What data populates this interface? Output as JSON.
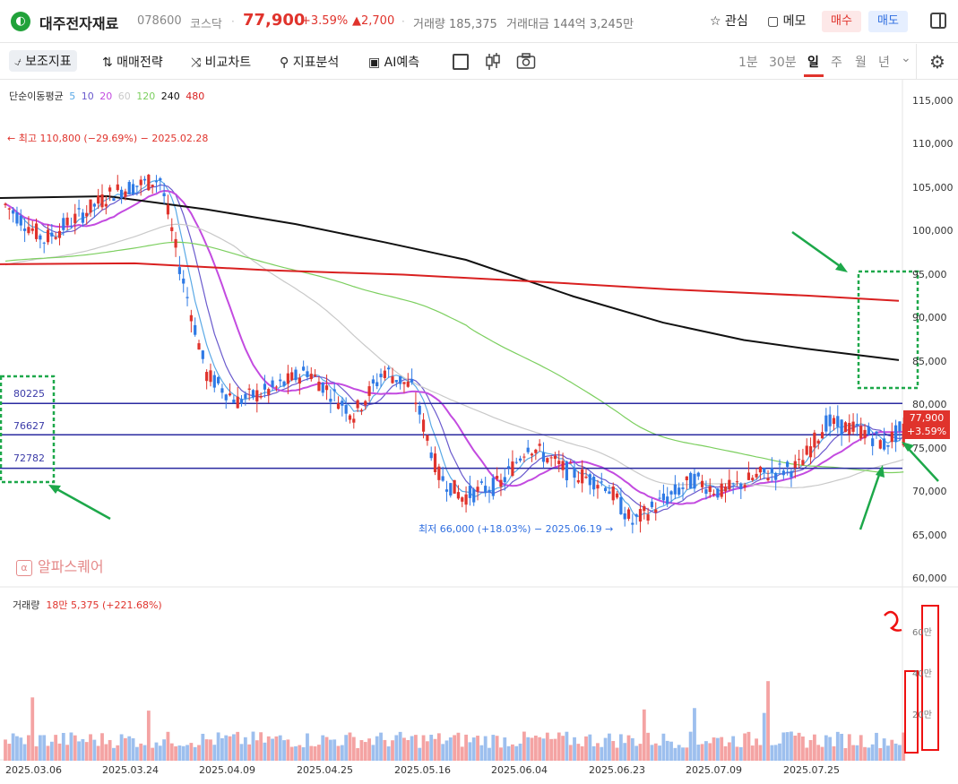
{
  "header": {
    "logo_glyph": "◐",
    "name": "대주전자재료",
    "code": "078600",
    "market": "코스닥",
    "price": "77,900",
    "change_pct": "+3.59%",
    "change_abs": "▲2,700",
    "volume": "거래량 185,375",
    "amount": "거래대금 144억 3,245만",
    "favorite_label": "☆ 관심",
    "memo_label": "▢ 메모",
    "buy_label": "매수",
    "sell_label": "매도"
  },
  "toolbar": {
    "indicator_label": "⍻ 보조지표",
    "strategy_label": "⇅ 매매전략",
    "compare_label": "⤨ 비교차트",
    "analysis_label": "⚲ 지표분석",
    "ai_label": "▣ AI예측",
    "candle_icon": "candle-icon",
    "camera_icon": "camera-icon",
    "periods": [
      "1분",
      "30분",
      "일",
      "주",
      "월",
      "년"
    ],
    "selected_period": "일",
    "period_dropdown": "⌄",
    "settings_icon": "⚙"
  },
  "legend": {
    "label": "단순이동평균",
    "items": [
      {
        "text": "5",
        "color": "#5aa9e6"
      },
      {
        "text": "10",
        "color": "#6a5acd"
      },
      {
        "text": "20",
        "color": "#c34be0"
      },
      {
        "text": "60",
        "color": "#c9c9c9"
      },
      {
        "text": "120",
        "color": "#7ccf5f"
      },
      {
        "text": "240",
        "color": "#111111"
      },
      {
        "text": "480",
        "color": "#d92020"
      }
    ]
  },
  "annotations": {
    "high": "← 최고 110,800 (−29.69%) − 2025.02.28",
    "low": "최저 66,000 (+18.03%) − 2025.06.19 →",
    "hlines": [
      "80225",
      "76627",
      "72782"
    ],
    "price_tag": "77,900",
    "price_tag_pct": "+3.59%",
    "brand": "알파스퀘어",
    "brand_glyph": "α",
    "volume_label": "거래량",
    "volume_value": "18만 5,375 (+221.68%)"
  },
  "chart_data": {
    "type": "candlestick",
    "y_ticks": [
      "115,000",
      "110,000",
      "105,000",
      "100,000",
      "95,000",
      "90,000",
      "85,000",
      "80,000",
      "75,000",
      "70,000",
      "65,000",
      "60,000"
    ],
    "volume_ticks": [
      "60만",
      "40만",
      "20만"
    ],
    "x_ticks": [
      "2025.03.06",
      "2025.03.24",
      "2025.04.09",
      "2025.04.25",
      "2025.05.16",
      "2025.06.04",
      "2025.06.23",
      "2025.07.09",
      "2025.07.25"
    ],
    "ylim": [
      60000,
      115000
    ],
    "horizontal_lines": [
      80225,
      76627,
      72782
    ],
    "high": 110800,
    "low": 66000,
    "last_close": 77900,
    "colors": {
      "up": "#e0332c",
      "down": "#2f7ae5",
      "up_vol": "#f4a3a3",
      "down_vol": "#9dbfee"
    }
  }
}
